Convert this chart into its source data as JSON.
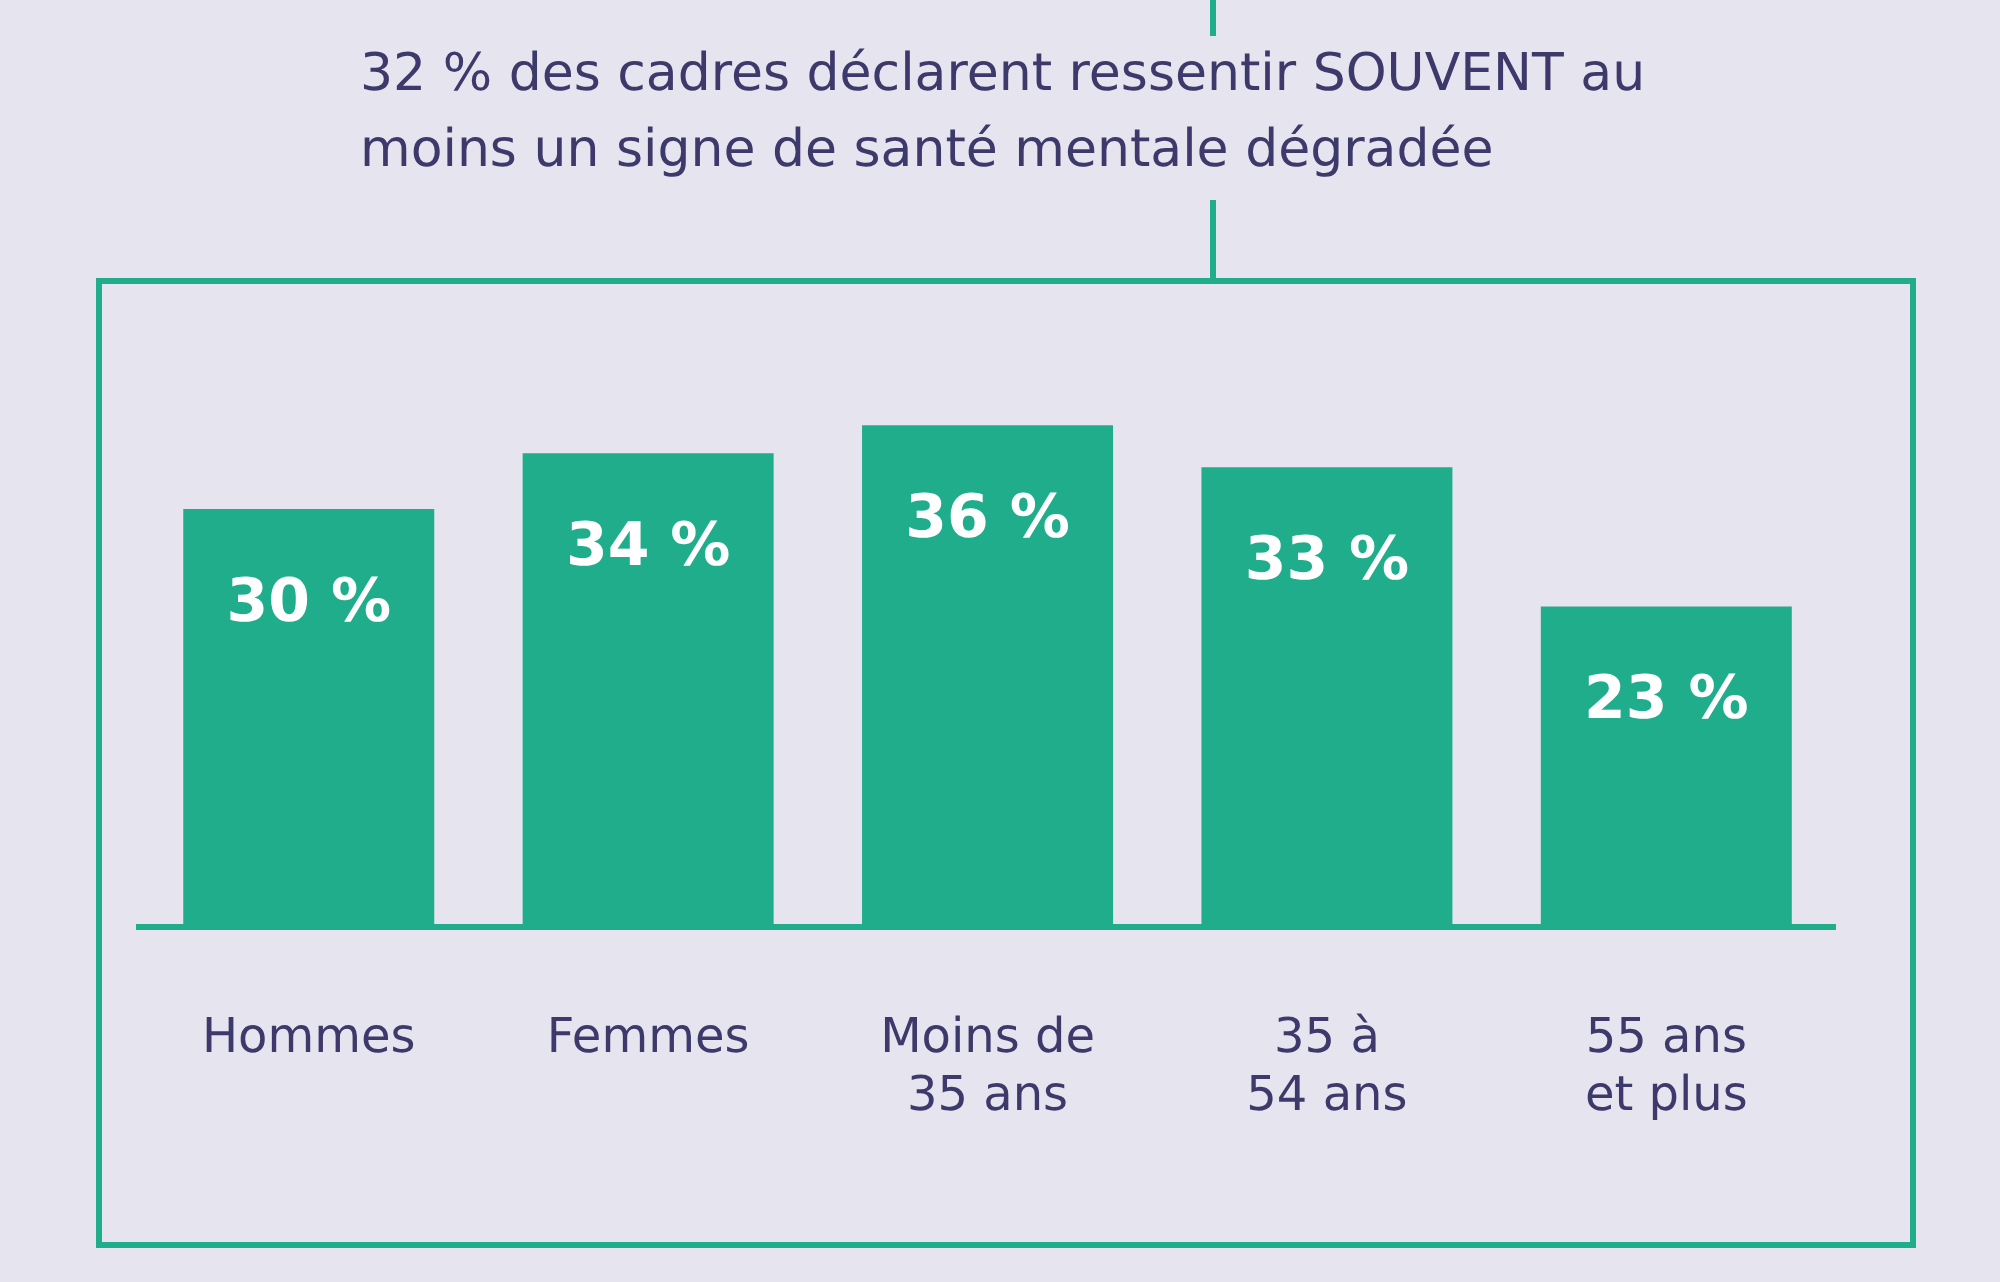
{
  "chart_data": {
    "type": "bar",
    "title": "32 % des cadres déclarent ressentir SOUVENT au moins un signe de santé mentale dégradée",
    "categories": [
      "Hommes",
      "Femmes",
      "Moins de 35 ans",
      "35 à 54 ans",
      "55 ans et plus"
    ],
    "values": [
      30,
      34,
      36,
      33,
      23
    ],
    "value_labels": [
      "30 %",
      "34 %",
      "36 %",
      "33 %",
      "23 %"
    ],
    "color": "#20ad8c",
    "grid": false,
    "legend": false
  }
}
